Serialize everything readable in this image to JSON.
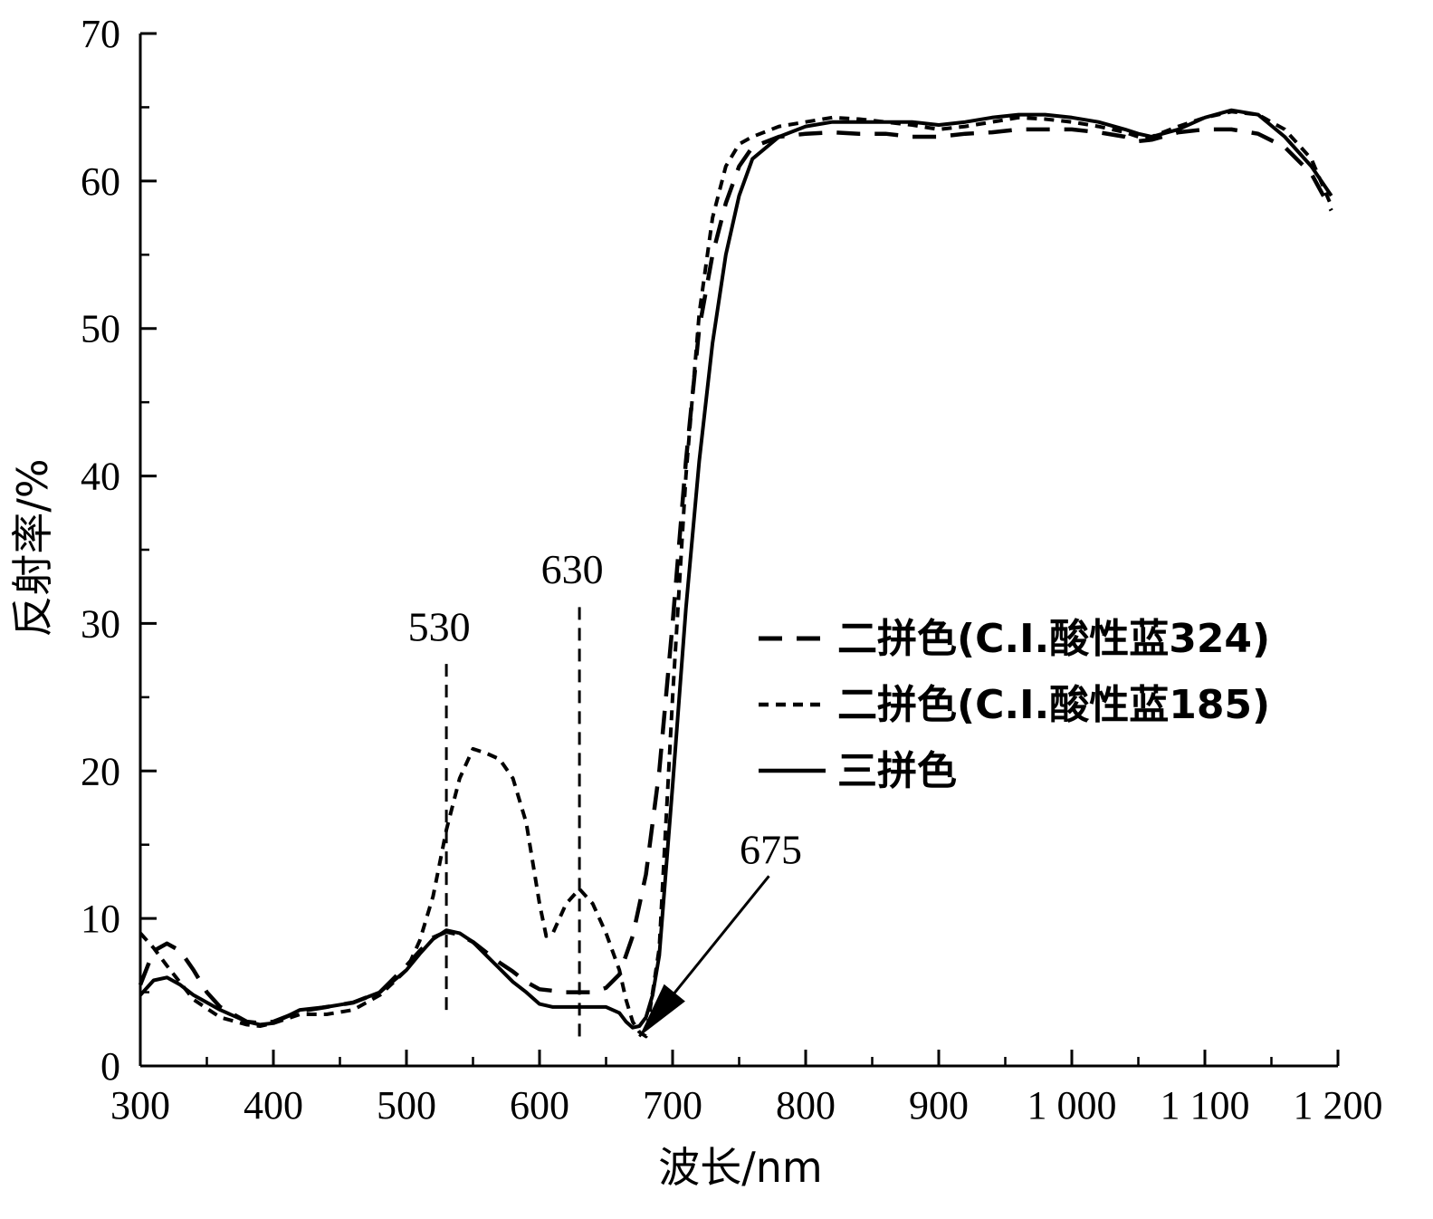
{
  "chart_data": {
    "type": "line",
    "xlabel": "波长/nm",
    "ylabel": "反射率/%",
    "xlim": [
      300,
      1200
    ],
    "ylim": [
      0,
      70
    ],
    "xticks": [
      300,
      400,
      500,
      600,
      700,
      800,
      900,
      1000,
      1100,
      1200
    ],
    "xtick_labels": [
      "300",
      "400",
      "500",
      "600",
      "700",
      "800",
      "900",
      "1 000",
      "1 100",
      "1 200"
    ],
    "yticks": [
      0,
      10,
      20,
      30,
      40,
      50,
      60,
      70
    ],
    "ytick_labels": [
      "0",
      "10",
      "20",
      "30",
      "40",
      "50",
      "60",
      "70"
    ],
    "grid": false,
    "legend_position": "middle-right",
    "series": [
      {
        "name": "二拼色(C.I.酸性蓝324)",
        "style": "long-dash",
        "color": "#000000",
        "x": [
          300,
          310,
          320,
          330,
          340,
          350,
          360,
          380,
          390,
          400,
          420,
          440,
          460,
          480,
          500,
          510,
          520,
          530,
          540,
          550,
          560,
          570,
          580,
          590,
          600,
          620,
          640,
          650,
          660,
          670,
          680,
          690,
          700,
          710,
          720,
          730,
          740,
          750,
          760,
          780,
          800,
          820,
          840,
          860,
          880,
          900,
          920,
          940,
          960,
          980,
          1000,
          1020,
          1040,
          1050,
          1060,
          1080,
          1100,
          1120,
          1140,
          1160,
          1180,
          1195
        ],
        "y": [
          5.5,
          7.8,
          8.3,
          7.8,
          6.5,
          5.0,
          4.0,
          3.0,
          2.9,
          3.0,
          3.7,
          4.0,
          4.3,
          5.0,
          6.8,
          7.8,
          8.7,
          9.1,
          8.9,
          8.4,
          7.7,
          7.0,
          6.4,
          5.7,
          5.2,
          5.0,
          5.0,
          5.3,
          6.2,
          8.8,
          13.0,
          20.0,
          30.0,
          41.0,
          50.0,
          55.0,
          58.5,
          61.0,
          62.3,
          63.0,
          63.2,
          63.3,
          63.2,
          63.2,
          63.0,
          63.0,
          63.2,
          63.3,
          63.5,
          63.5,
          63.5,
          63.3,
          63.0,
          62.7,
          62.8,
          63.3,
          63.5,
          63.5,
          63.2,
          62.3,
          60.5,
          58.0
        ]
      },
      {
        "name": "二拼色(C.I.酸性蓝185)",
        "style": "short-dash",
        "color": "#000000",
        "x": [
          300,
          310,
          320,
          340,
          360,
          380,
          390,
          400,
          420,
          440,
          460,
          480,
          500,
          510,
          520,
          530,
          540,
          550,
          560,
          570,
          580,
          590,
          600,
          605,
          610,
          620,
          630,
          640,
          650,
          660,
          665,
          670,
          675,
          680,
          690,
          700,
          710,
          720,
          730,
          740,
          750,
          760,
          780,
          800,
          820,
          840,
          860,
          880,
          900,
          920,
          940,
          960,
          980,
          1000,
          1020,
          1040,
          1050,
          1060,
          1080,
          1100,
          1120,
          1140,
          1160,
          1180,
          1195
        ],
        "y": [
          9.0,
          8.0,
          6.8,
          4.5,
          3.3,
          2.8,
          2.7,
          2.9,
          3.5,
          3.5,
          3.8,
          4.8,
          6.5,
          8.5,
          11.5,
          16.0,
          19.5,
          21.5,
          21.2,
          20.8,
          19.5,
          16.5,
          11.0,
          8.8,
          9.0,
          11.0,
          12.0,
          11.0,
          9.0,
          6.5,
          4.5,
          3.0,
          2.3,
          2.0,
          8.0,
          25.0,
          40.0,
          51.0,
          57.5,
          61.0,
          62.5,
          63.0,
          63.7,
          64.0,
          64.3,
          64.2,
          64.0,
          63.8,
          63.5,
          63.7,
          64.0,
          64.3,
          64.2,
          64.0,
          63.7,
          63.3,
          63.0,
          63.0,
          63.7,
          64.3,
          64.7,
          64.5,
          63.5,
          61.5,
          58.3
        ]
      },
      {
        "name": "三拼色",
        "style": "solid",
        "color": "#000000",
        "x": [
          300,
          310,
          320,
          330,
          340,
          360,
          380,
          390,
          400,
          420,
          440,
          460,
          480,
          500,
          510,
          520,
          530,
          540,
          550,
          560,
          570,
          580,
          590,
          600,
          610,
          620,
          630,
          640,
          650,
          660,
          665,
          670,
          675,
          680,
          685,
          690,
          700,
          710,
          720,
          730,
          740,
          750,
          760,
          780,
          800,
          820,
          840,
          860,
          880,
          900,
          920,
          940,
          960,
          980,
          1000,
          1020,
          1040,
          1050,
          1060,
          1080,
          1100,
          1120,
          1140,
          1160,
          1180,
          1195
        ],
        "y": [
          4.8,
          5.8,
          6.0,
          5.5,
          4.8,
          3.8,
          3.0,
          2.8,
          2.9,
          3.8,
          4.0,
          4.3,
          5.0,
          6.5,
          7.6,
          8.6,
          9.2,
          9.0,
          8.4,
          7.5,
          6.6,
          5.7,
          5.0,
          4.2,
          4.0,
          4.0,
          4.0,
          4.0,
          4.0,
          3.6,
          3.0,
          2.6,
          2.7,
          3.3,
          4.8,
          7.5,
          19.0,
          31.0,
          41.0,
          49.0,
          55.0,
          59.0,
          61.5,
          63.0,
          63.7,
          64.0,
          64.0,
          64.0,
          64.0,
          63.8,
          64.0,
          64.3,
          64.5,
          64.5,
          64.3,
          64.0,
          63.5,
          63.2,
          63.0,
          63.5,
          64.3,
          64.8,
          64.5,
          63.0,
          61.0,
          59.0
        ]
      }
    ],
    "annotations": [
      {
        "text": "530",
        "x": 530,
        "line_from": 3.8,
        "line_to": 27.6
      },
      {
        "text": "630",
        "x": 630,
        "line_from": 2.0,
        "line_to": 31.5
      },
      {
        "text": "675",
        "arrow_tip": [
          675,
          2.0
        ],
        "arrow_tail": [
          735,
          9.5
        ]
      }
    ]
  }
}
